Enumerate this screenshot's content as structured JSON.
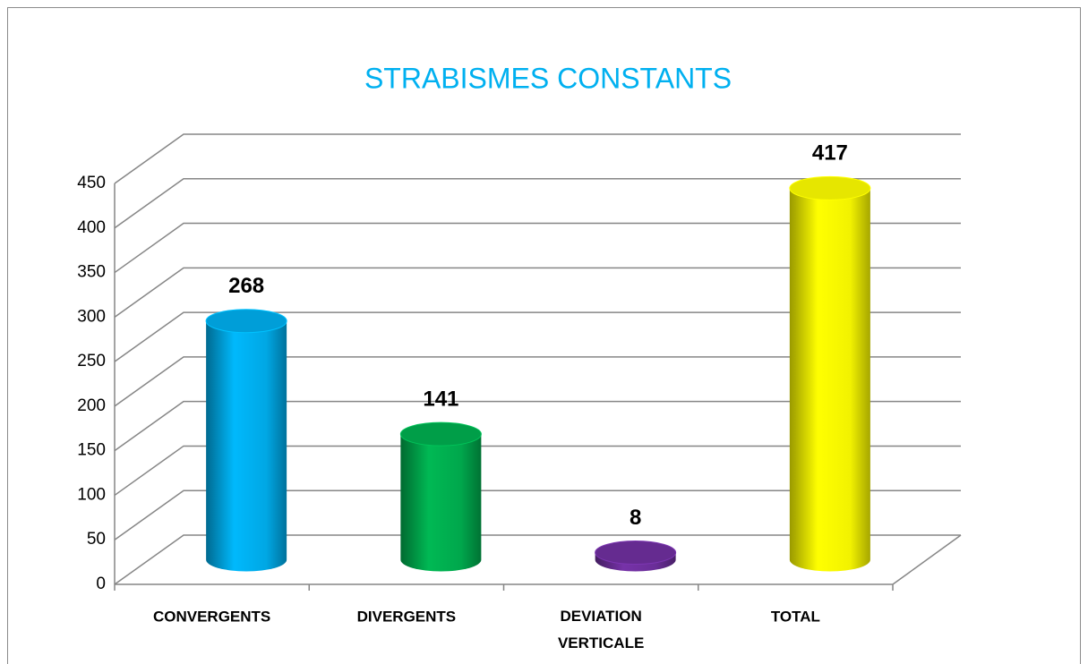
{
  "chart_data": {
    "type": "bar3d",
    "title": "STRABISMES CONSTANTS",
    "categories": [
      "CONVERGENTS",
      "DIVERGENTS",
      "DEVIATION VERTICALE",
      "TOTAL"
    ],
    "values": [
      268,
      141,
      8,
      417
    ],
    "colors": [
      "#00b0f0",
      "#00b050",
      "#7030a0",
      "#ffff00"
    ],
    "ylim": [
      0,
      450
    ],
    "yticks": [
      0,
      50,
      100,
      150,
      200,
      250,
      300,
      350,
      400,
      450
    ],
    "grid": true
  }
}
